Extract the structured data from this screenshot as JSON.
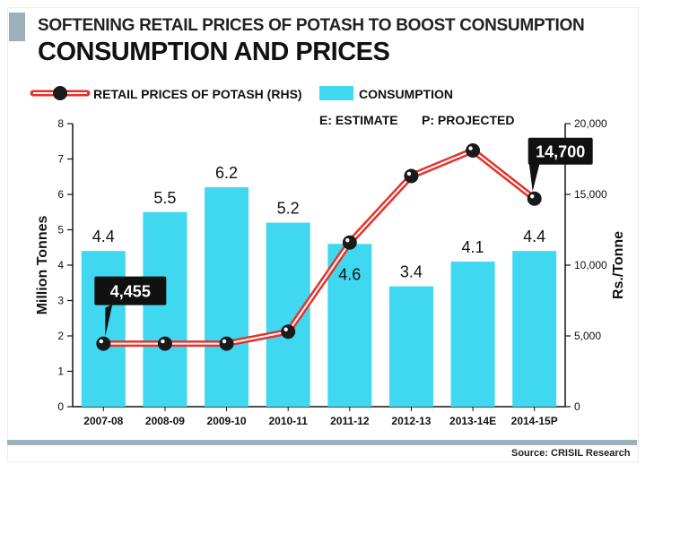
{
  "header": {
    "kicker": "SOFTENING RETAIL PRICES OF POTASH TO BOOST CONSUMPTION",
    "title": "CONSUMPTION AND PRICES"
  },
  "source": "Source: CRISIL Research",
  "colors": {
    "bar": "#3fd8f0",
    "line": "#e5322b",
    "marker": "#1a1a1a",
    "callout": "#111111",
    "accent": "#9cb0ba"
  },
  "chart_data": {
    "type": "bar",
    "categories": [
      "2007-08",
      "2008-09",
      "2009-10",
      "2010-11",
      "2011-12",
      "2012-13",
      "2013-14E",
      "2014-15P"
    ],
    "series": [
      {
        "name": "CONSUMPTION",
        "axis": "left",
        "values": [
          4.4,
          5.5,
          6.2,
          5.2,
          4.6,
          3.4,
          4.1,
          4.4
        ],
        "value_labels": [
          "4.4",
          "5.5",
          "6.2",
          "5.2",
          "4.6",
          "3.4",
          "4.1",
          "4.4"
        ]
      },
      {
        "name": "RETAIL PRICES OF POTASH (RHS)",
        "axis": "right",
        "type": "line",
        "values": [
          4455,
          4455,
          4455,
          5300,
          11600,
          16300,
          18100,
          14700
        ]
      }
    ],
    "callouts": [
      {
        "label": "4,455",
        "index": 0
      },
      {
        "label": "14,700",
        "index": 7
      }
    ],
    "ylabel_left": "Million Tonnes",
    "ylabel_right": "Rs./Tonne",
    "ylim_left": [
      0,
      8
    ],
    "ylim_right": [
      0,
      20000
    ],
    "yticks_left": [
      "0",
      "1",
      "2",
      "3",
      "4",
      "5",
      "6",
      "7",
      "8"
    ],
    "yticks_right": [
      "0",
      "5,000",
      "10,000",
      "15,000",
      "20,000"
    ],
    "legend": {
      "line_label": "RETAIL PRICES OF POTASH (RHS)",
      "bar_label": "CONSUMPTION",
      "note_estimate": "E: ESTIMATE",
      "note_projected": "P: PROJECTED"
    }
  }
}
